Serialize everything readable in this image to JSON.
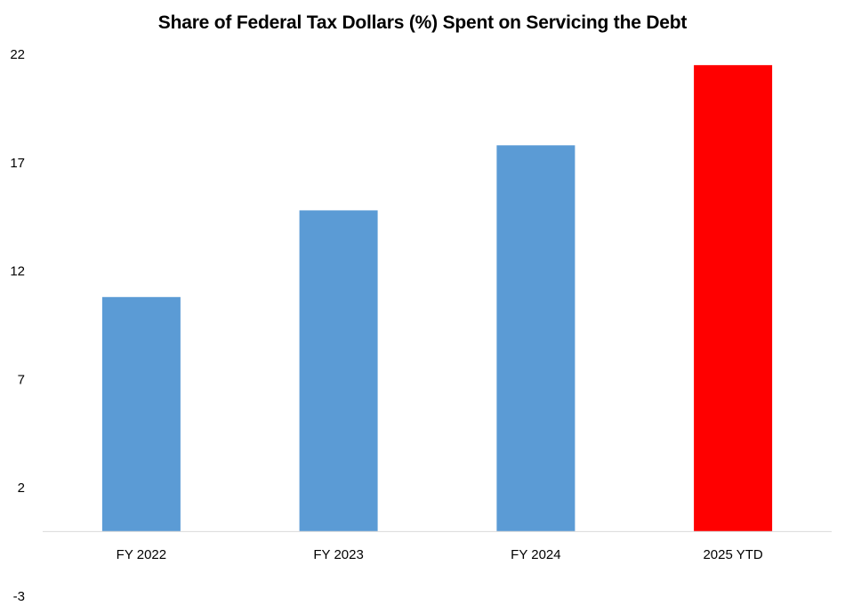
{
  "chart_data": {
    "type": "bar",
    "title": "Share of Federal Tax Dollars (%) Spent on Servicing the Debt",
    "categories": [
      "FY 2022",
      "FY 2023",
      "FY 2024",
      "2025 YTD"
    ],
    "values": [
      10.8,
      14.8,
      17.8,
      21.5
    ],
    "bar_colors": [
      "#5b9bd5",
      "#5b9bd5",
      "#5b9bd5",
      "#ff0000"
    ],
    "ylim": [
      -3,
      22
    ],
    "yticks": [
      22,
      17,
      12,
      7,
      2,
      -3
    ],
    "xlabel": "",
    "ylabel": "",
    "grid": false,
    "legend": "none",
    "baseline": 0
  }
}
